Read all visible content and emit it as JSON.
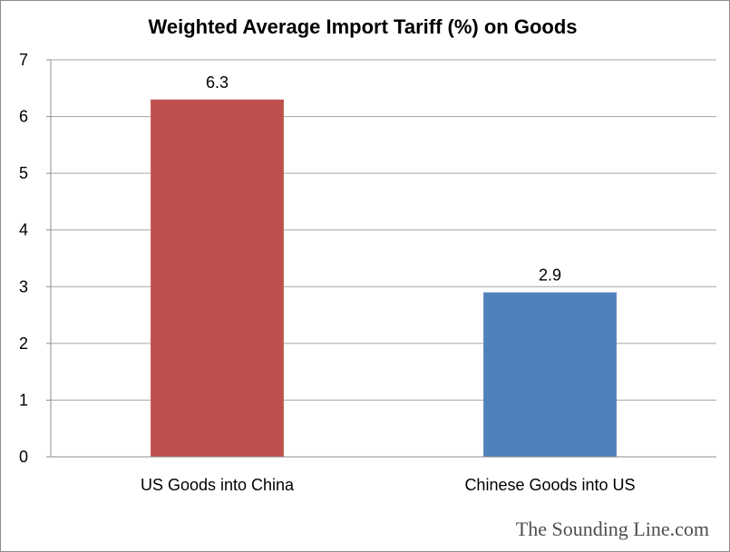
{
  "chart_data": {
    "type": "bar",
    "title": "Weighted Average Import Tariff (%) on Goods",
    "categories": [
      "US Goods into China",
      "Chinese Goods into US"
    ],
    "values": [
      6.3,
      2.9
    ],
    "data_labels": [
      "6.3",
      "2.9"
    ],
    "bar_colors": [
      "#c0504d",
      "#4f81bd"
    ],
    "xlabel": "",
    "ylabel": "",
    "ylim": [
      0,
      7
    ],
    "yticks": [
      0,
      1,
      2,
      3,
      4,
      5,
      6,
      7
    ],
    "grid": true,
    "legend": "none"
  },
  "watermark": "The Sounding Line.com",
  "colors": {
    "gridline": "#a6a6a6",
    "axis": "#8c8c8c",
    "frame": "#8c8c8c"
  }
}
